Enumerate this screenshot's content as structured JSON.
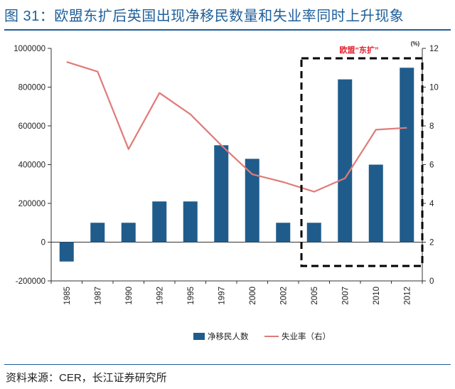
{
  "title": "图 31：欧盟东扩后英国出现净移民数量和失业率同时上升现象",
  "source": "资料来源：CER，长江证券研究所",
  "chart_data": {
    "type": "bar+line",
    "categories": [
      "1985",
      "1987",
      "1990",
      "1992",
      "1995",
      "1997",
      "2000",
      "2002",
      "2005",
      "2007",
      "2010",
      "2012"
    ],
    "series": [
      {
        "name": "净移民人数",
        "type": "bar",
        "axis": "left",
        "color": "#1f5c8b",
        "values": [
          -100000,
          100000,
          100000,
          210000,
          210000,
          500000,
          430000,
          100000,
          100000,
          840000,
          400000,
          900000
        ]
      },
      {
        "name": "失业率（右）",
        "type": "line",
        "axis": "right",
        "color": "#e07b78",
        "values": [
          11.3,
          10.8,
          6.8,
          9.7,
          8.6,
          7.0,
          5.5,
          5.1,
          4.6,
          5.3,
          7.8,
          7.9
        ]
      }
    ],
    "left_axis": {
      "min": -200000,
      "max": 1000000,
      "step": 200000,
      "tick_labels": [
        "-200000",
        "0",
        "200000",
        "400000",
        "600000",
        "800000",
        "1000000"
      ]
    },
    "right_axis": {
      "min": 0,
      "max": 12,
      "step": 2,
      "unit_label": "(%)",
      "tick_labels": [
        "0",
        "2",
        "4",
        "6",
        "8",
        "10",
        "12"
      ]
    },
    "annotation": {
      "text": "欧盟“东扩”",
      "from_category": "2005",
      "to_category": "2012",
      "style": "dashed-box"
    },
    "legend": {
      "position": "bottom",
      "items": [
        "净移民人数",
        "失业率（右）"
      ]
    }
  }
}
